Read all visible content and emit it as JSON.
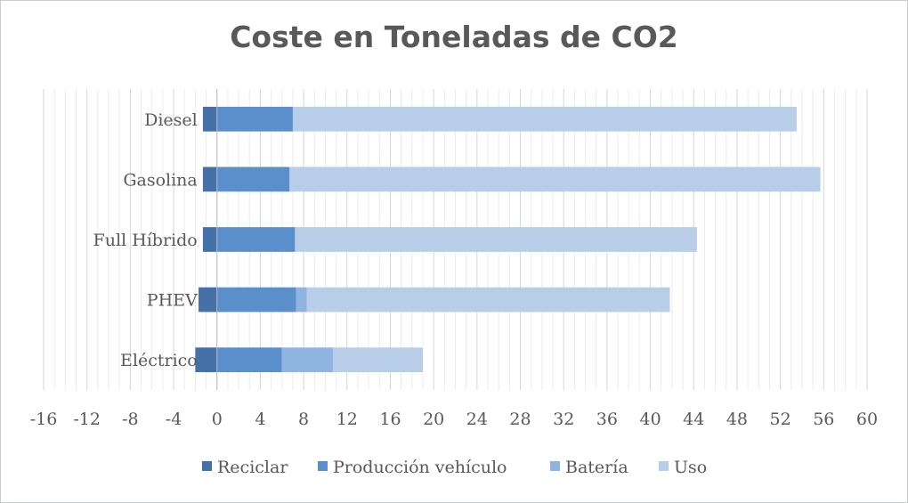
{
  "chart_data": {
    "type": "bar",
    "orientation": "horizontal",
    "stacked": true,
    "title": "Coste en Toneladas de CO2",
    "categories": [
      "Diesel",
      "Gasolina",
      "Full Híbrido",
      "PHEV",
      "Eléctrico"
    ],
    "series": [
      {
        "name": "Reciclar",
        "color": "#4472a8",
        "values": [
          -1.3,
          -1.3,
          -1.3,
          -1.7,
          -2.0
        ]
      },
      {
        "name": "Producción vehículo",
        "color": "#5b8fcc",
        "values": [
          7.0,
          6.7,
          7.2,
          7.3,
          6.0
        ]
      },
      {
        "name": "Batería",
        "color": "#8fb4df",
        "values": [
          0,
          0,
          0,
          1.0,
          4.7
        ]
      },
      {
        "name": "Uso",
        "color": "#b8cde8",
        "values": [
          46.5,
          49.0,
          37.1,
          33.5,
          8.3
        ]
      }
    ],
    "xlim": [
      -16,
      60
    ],
    "xticks": [
      "-16",
      "-12",
      "-8",
      "-4",
      "0",
      "4",
      "8",
      "12",
      "16",
      "20",
      "24",
      "28",
      "32",
      "36",
      "40",
      "44",
      "48",
      "52",
      "56",
      "60"
    ],
    "grid": true,
    "legend_position": "bottom"
  }
}
